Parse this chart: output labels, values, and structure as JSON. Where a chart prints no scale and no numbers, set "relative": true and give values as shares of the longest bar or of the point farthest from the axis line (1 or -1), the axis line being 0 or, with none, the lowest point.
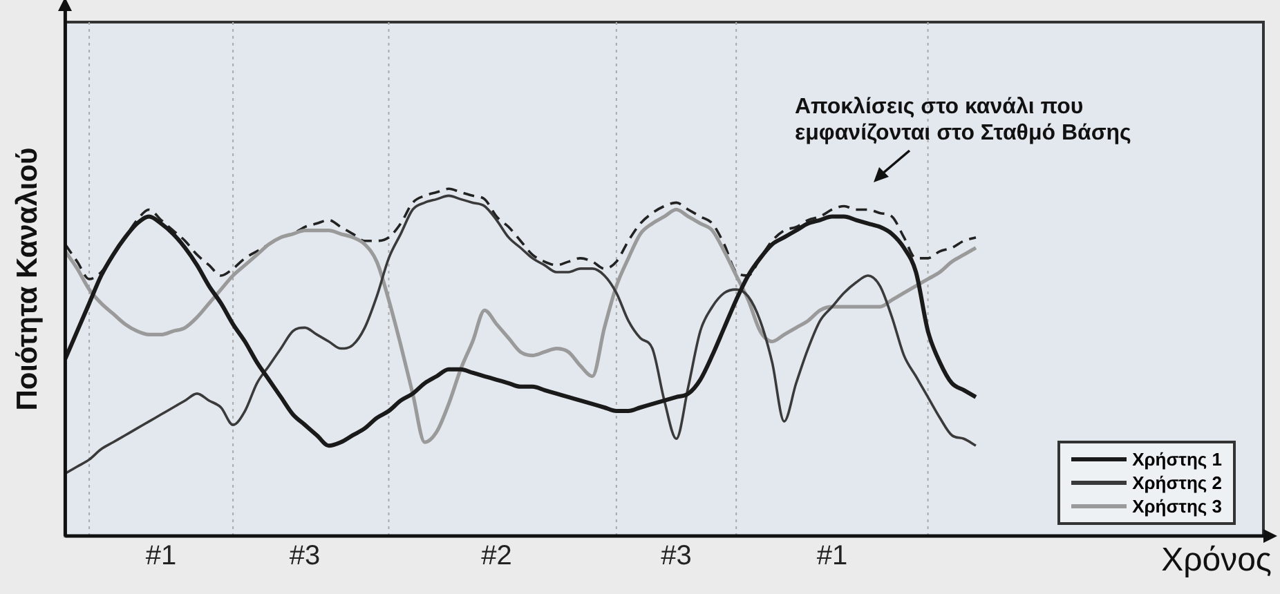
{
  "chart_data": {
    "type": "line",
    "relative": true,
    "xlabel": "Χρόνος",
    "ylabel": "Ποιότητα Καναλιού",
    "categories": [
      null,
      null,
      null,
      null,
      null,
      null,
      null,
      null,
      "#1",
      null,
      null,
      null,
      null,
      null,
      null,
      null,
      null,
      null,
      null,
      null,
      "#3",
      null,
      null,
      null,
      null,
      null,
      null,
      null,
      null,
      null,
      null,
      null,
      null,
      null,
      null,
      null,
      "#2",
      null,
      null,
      null,
      null,
      null,
      null,
      null,
      null,
      null,
      null,
      null,
      null,
      null,
      null,
      "#3",
      null,
      null,
      null,
      null,
      null,
      null,
      null,
      null,
      null,
      null,
      null,
      null,
      "#1",
      null,
      null,
      null,
      null,
      null,
      null,
      null,
      null,
      null,
      null,
      null,
      null,
      null,
      null,
      null,
      null,
      null,
      null,
      null,
      null,
      null,
      null,
      null,
      null,
      null,
      null,
      null,
      null,
      null,
      null,
      null,
      null,
      null,
      null,
      null,
      null
    ],
    "grid": false,
    "legend": "bottom right",
    "marker": "none",
    "line_style": "solid",
    "series": [
      {
        "name": "Χρήστης 1",
        "color": "#1a1a1a",
        "values": [
          0.51,
          0.59,
          0.67,
          0.75,
          0.81,
          0.86,
          0.9,
          0.92,
          0.9,
          0.87,
          0.83,
          0.78,
          0.72,
          0.67,
          0.61,
          0.56,
          0.5,
          0.45,
          0.4,
          0.35,
          0.32,
          0.29,
          0.26,
          0.27,
          0.29,
          0.31,
          0.34,
          0.36,
          0.39,
          0.41,
          0.44,
          0.46,
          0.48,
          0.48,
          0.47,
          0.46,
          0.45,
          0.44,
          0.43,
          0.43,
          0.42,
          0.41,
          0.4,
          0.39,
          0.38,
          0.37,
          0.36,
          0.36,
          0.37,
          0.38,
          0.39,
          0.4,
          0.41,
          0.45,
          0.52,
          0.6,
          0.68,
          0.75,
          0.8,
          0.84,
          0.86,
          0.88,
          0.9,
          0.91,
          0.92,
          0.92,
          0.91,
          0.9,
          0.89,
          0.87,
          0.83,
          0.76,
          0.59,
          0.5,
          0.44,
          0.42,
          0.4,
          null,
          null,
          null,
          null,
          null,
          null,
          null,
          null,
          null,
          null,
          null,
          null,
          null,
          null,
          null,
          null,
          null,
          null,
          null,
          null,
          null,
          null,
          null,
          null
        ]
      },
      {
        "name": "Χρήστης 2",
        "color": "#3a3a3a",
        "values": [
          0.18,
          0.2,
          0.22,
          0.25,
          0.27,
          0.29,
          0.31,
          0.33,
          0.35,
          0.37,
          0.39,
          0.41,
          0.39,
          0.37,
          0.32,
          0.36,
          0.44,
          0.49,
          0.54,
          0.59,
          0.6,
          0.58,
          0.56,
          0.54,
          0.55,
          0.6,
          0.69,
          0.8,
          0.87,
          0.94,
          0.96,
          0.97,
          0.98,
          0.97,
          0.96,
          0.95,
          0.91,
          0.86,
          0.83,
          0.8,
          0.78,
          0.76,
          0.76,
          0.77,
          0.77,
          0.75,
          0.7,
          0.62,
          0.57,
          0.54,
          0.39,
          0.28,
          0.43,
          0.59,
          0.66,
          0.7,
          0.71,
          0.69,
          0.62,
          0.5,
          0.33,
          0.44,
          0.54,
          0.62,
          0.66,
          0.7,
          0.73,
          0.75,
          0.72,
          0.63,
          0.52,
          0.46,
          0.4,
          0.34,
          0.29,
          0.28,
          0.26,
          null,
          null,
          null,
          null,
          null,
          null,
          null,
          null,
          null,
          null,
          null,
          null,
          null,
          null,
          null,
          null,
          null,
          null,
          null,
          null,
          null,
          null,
          null,
          null
        ]
      },
      {
        "name": "Χρήστης 3",
        "color": "#9a9a9a",
        "values": [
          0.82,
          0.77,
          0.71,
          0.67,
          0.64,
          0.61,
          0.59,
          0.58,
          0.58,
          0.59,
          0.6,
          0.63,
          0.67,
          0.71,
          0.75,
          0.78,
          0.81,
          0.84,
          0.86,
          0.87,
          0.88,
          0.88,
          0.88,
          0.87,
          0.86,
          0.84,
          0.79,
          0.68,
          0.55,
          0.41,
          0.27,
          0.3,
          0.38,
          0.48,
          0.56,
          0.65,
          0.61,
          0.57,
          0.53,
          0.52,
          0.53,
          0.54,
          0.53,
          0.49,
          0.46,
          0.6,
          0.72,
          0.8,
          0.87,
          0.9,
          0.92,
          0.94,
          0.92,
          0.9,
          0.88,
          0.82,
          0.75,
          0.68,
          0.59,
          0.56,
          0.58,
          0.6,
          0.62,
          0.65,
          0.66,
          0.66,
          0.66,
          0.66,
          0.66,
          0.68,
          0.7,
          0.72,
          0.74,
          0.76,
          0.79,
          0.81,
          0.83,
          null,
          null,
          null,
          null,
          null,
          null,
          null,
          null,
          null,
          null,
          null,
          null,
          null,
          null,
          null,
          null,
          null,
          null,
          null,
          null,
          null,
          null,
          null,
          null
        ]
      },
      {
        "color": "#222222",
        "line_style": "dashed",
        "values": [
          0.84,
          0.79,
          0.74,
          0.76,
          0.81,
          0.86,
          0.91,
          0.94,
          0.91,
          0.88,
          0.85,
          0.81,
          0.78,
          0.75,
          0.77,
          0.8,
          0.82,
          0.84,
          0.86,
          0.87,
          0.89,
          0.9,
          0.91,
          0.89,
          0.87,
          0.85,
          0.85,
          0.86,
          0.9,
          0.96,
          0.98,
          0.99,
          1,
          0.99,
          0.98,
          0.97,
          0.92,
          0.89,
          0.85,
          0.81,
          0.79,
          0.78,
          0.79,
          0.8,
          0.79,
          0.77,
          0.79,
          0.85,
          0.9,
          0.93,
          0.95,
          0.96,
          0.94,
          0.92,
          0.9,
          0.84,
          0.76,
          0.75,
          0.8,
          0.85,
          0.88,
          0.89,
          0.91,
          0.92,
          0.94,
          0.95,
          0.94,
          0.94,
          0.93,
          0.92,
          0.86,
          0.8,
          0.8,
          0.82,
          0.83,
          0.85,
          0.86,
          null,
          null,
          null,
          null,
          null,
          null,
          null,
          null,
          null,
          null,
          null,
          null,
          null,
          null,
          null,
          null,
          null,
          null,
          null,
          null,
          null,
          null,
          null,
          null
        ]
      }
    ],
    "annotations": [
      "Αποκλίσεις στο κανάλι που εμφανίζονται στο Σταθμό Βάσης"
    ]
  }
}
